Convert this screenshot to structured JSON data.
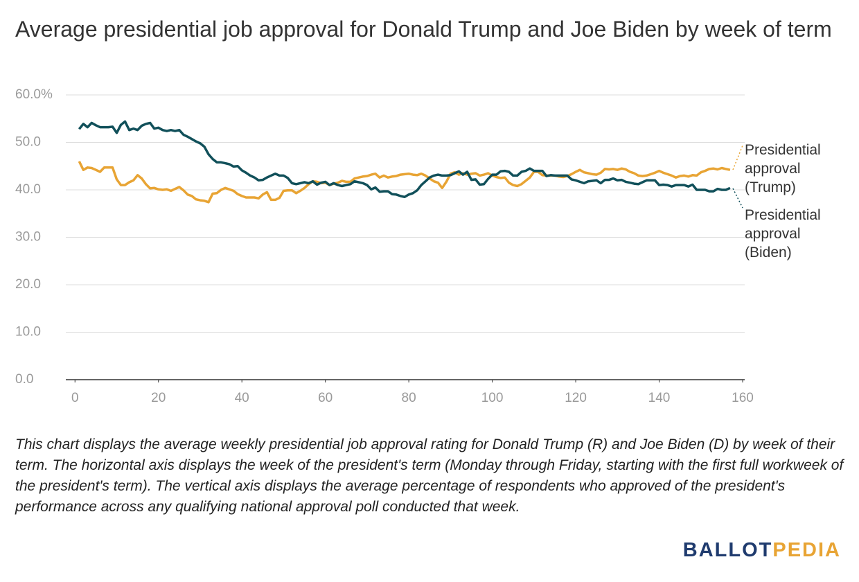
{
  "chart_data": {
    "type": "line",
    "title": "Average presidential job approval for Donald Trump and Joe Biden by week of term",
    "x": [
      1,
      2,
      3,
      4,
      5,
      6,
      7,
      8,
      9,
      10,
      11,
      12,
      13,
      14,
      15,
      16,
      17,
      18,
      19,
      20,
      21,
      22,
      23,
      24,
      25,
      26,
      27,
      28,
      29,
      30,
      31,
      32,
      33,
      34,
      35,
      36,
      37,
      38,
      39,
      40,
      41,
      42,
      43,
      44,
      45,
      46,
      47,
      48,
      49,
      50,
      51,
      52,
      53,
      54,
      55,
      56,
      57,
      58,
      59,
      60,
      61,
      62,
      63,
      64,
      65,
      66,
      67,
      68,
      69,
      70,
      71,
      72,
      73,
      74,
      75,
      76,
      77,
      78,
      79,
      80,
      81,
      82,
      83,
      84,
      85,
      86,
      87,
      88,
      89,
      90,
      91,
      92,
      93,
      94,
      95,
      96,
      97,
      98,
      99,
      100,
      101,
      102,
      103,
      104,
      105,
      106,
      107,
      108,
      109,
      110,
      111,
      112,
      113,
      114,
      115,
      116,
      117,
      118,
      119,
      120,
      121,
      122,
      123,
      124,
      125,
      126,
      127,
      128,
      129,
      130,
      131,
      132,
      133,
      134,
      135,
      136,
      137,
      138,
      139,
      140,
      141,
      142,
      143,
      144,
      145,
      146,
      147,
      148,
      149,
      150,
      151,
      152,
      153,
      154,
      155,
      156,
      157
    ],
    "series": [
      {
        "name": "Presidential approval (Trump)",
        "color": "#e8a434",
        "values": [
          46.0,
          44.2,
          44.7,
          44.6,
          44.2,
          43.8,
          44.7,
          44.7,
          44.7,
          42.2,
          41.0,
          41.0,
          41.6,
          42.0,
          43.1,
          42.4,
          41.2,
          40.3,
          40.4,
          40.1,
          40.0,
          40.1,
          39.8,
          40.2,
          40.6,
          39.9,
          39.0,
          38.7,
          38.0,
          37.8,
          37.7,
          37.4,
          39.2,
          39.3,
          40.0,
          40.4,
          40.1,
          39.8,
          39.1,
          38.7,
          38.4,
          38.4,
          38.4,
          38.2,
          39.0,
          39.5,
          37.9,
          37.9,
          38.3,
          39.8,
          39.9,
          39.9,
          39.3,
          39.8,
          40.4,
          41.2,
          41.8,
          41.7,
          41.4,
          41.5,
          41.0,
          41.3,
          41.5,
          41.9,
          41.7,
          41.7,
          42.4,
          42.6,
          42.8,
          42.9,
          43.2,
          43.4,
          42.6,
          43.0,
          42.6,
          42.8,
          42.9,
          43.2,
          43.3,
          43.4,
          43.2,
          43.1,
          43.4,
          43.0,
          42.4,
          41.8,
          41.5,
          40.4,
          41.7,
          43.4,
          43.7,
          43.2,
          43.5,
          43.2,
          43.4,
          43.5,
          43.0,
          43.2,
          43.5,
          43.0,
          42.7,
          42.5,
          42.6,
          41.5,
          41.0,
          40.8,
          41.2,
          41.9,
          42.6,
          43.8,
          43.8,
          43.1,
          43.0,
          43.0,
          43.0,
          42.8,
          42.7,
          42.9,
          43.3,
          43.8,
          44.2,
          43.7,
          43.5,
          43.3,
          43.2,
          43.6,
          44.4,
          44.3,
          44.4,
          44.2,
          44.5,
          44.3,
          43.8,
          43.5,
          43.0,
          42.9,
          43.0,
          43.3,
          43.6,
          44.0,
          43.6,
          43.3,
          43.0,
          42.6,
          42.9,
          43.0,
          42.8,
          43.1,
          43.0,
          43.7,
          44.0,
          44.4,
          44.5,
          44.3,
          44.6,
          44.4,
          44.2
        ]
      },
      {
        "name": "Presidential approval (Biden)",
        "color": "#11505a",
        "values": [
          52.8,
          53.9,
          53.2,
          54.1,
          53.6,
          53.2,
          53.2,
          53.2,
          53.3,
          52.0,
          53.7,
          54.4,
          52.6,
          52.9,
          52.6,
          53.5,
          53.9,
          54.1,
          52.9,
          53.1,
          52.6,
          52.4,
          52.6,
          52.4,
          52.6,
          51.6,
          51.2,
          50.7,
          50.2,
          49.8,
          49.1,
          47.5,
          46.5,
          45.8,
          45.8,
          45.6,
          45.4,
          44.9,
          45.0,
          44.1,
          43.6,
          43.0,
          42.6,
          42.0,
          42.1,
          42.6,
          43.0,
          43.4,
          43.0,
          43.0,
          42.5,
          41.4,
          41.2,
          41.4,
          41.6,
          41.4,
          41.8,
          41.1,
          41.5,
          41.7,
          41.0,
          41.4,
          41.0,
          40.8,
          41.0,
          41.2,
          41.8,
          41.6,
          41.4,
          41.0,
          40.1,
          40.5,
          39.6,
          39.7,
          39.7,
          39.1,
          39.0,
          38.7,
          38.5,
          39.0,
          39.3,
          39.9,
          41.0,
          41.8,
          42.6,
          43.0,
          43.2,
          43.0,
          43.0,
          43.1,
          43.5,
          43.9,
          43.2,
          43.8,
          42.1,
          42.2,
          41.1,
          41.2,
          42.3,
          43.2,
          43.2,
          43.9,
          44.0,
          43.8,
          43.0,
          43.0,
          43.8,
          44.0,
          44.5,
          44.0,
          44.0,
          44.0,
          42.9,
          43.1,
          43.0,
          43.0,
          43.0,
          43.0,
          42.2,
          42.0,
          41.7,
          41.4,
          41.8,
          41.9,
          42.0,
          41.4,
          42.1,
          42.1,
          42.4,
          42.0,
          42.1,
          41.7,
          41.5,
          41.3,
          41.2,
          41.6,
          42.0,
          42.0,
          42.0,
          41.0,
          41.1,
          41.0,
          40.7,
          41.0,
          41.0,
          41.0,
          40.7,
          41.1,
          40.0,
          40.0,
          40.0,
          39.7,
          39.7,
          40.2,
          40.0,
          40.0,
          40.4
        ]
      }
    ],
    "xlim": [
      -2.2,
      160.5
    ],
    "ylim": [
      0,
      60
    ],
    "xticks": [
      0,
      20,
      40,
      60,
      80,
      100,
      120,
      140,
      160
    ],
    "yticks": [
      {
        "value": 0,
        "label": "0.0"
      },
      {
        "value": 10,
        "label": "10.0"
      },
      {
        "value": 20,
        "label": "20.0"
      },
      {
        "value": 30,
        "label": "30.0"
      },
      {
        "value": 40,
        "label": "40.0"
      },
      {
        "value": 50,
        "label": "50.0"
      },
      {
        "value": 60,
        "label": "60.0%"
      }
    ],
    "grid": true
  },
  "caption": "This chart displays the average weekly presidential job approval rating for Donald Trump (R) and Joe Biden (D) by week of their term. The horizontal axis displays the week of the president's term (Monday through Friday, starting with the first full workweek of the president's term). The vertical axis displays the average percentage of respondents who approved of the president's performance across any qualifying national approval poll conducted that week.",
  "logo": {
    "left": "BALLOT",
    "right": "PEDIA"
  }
}
